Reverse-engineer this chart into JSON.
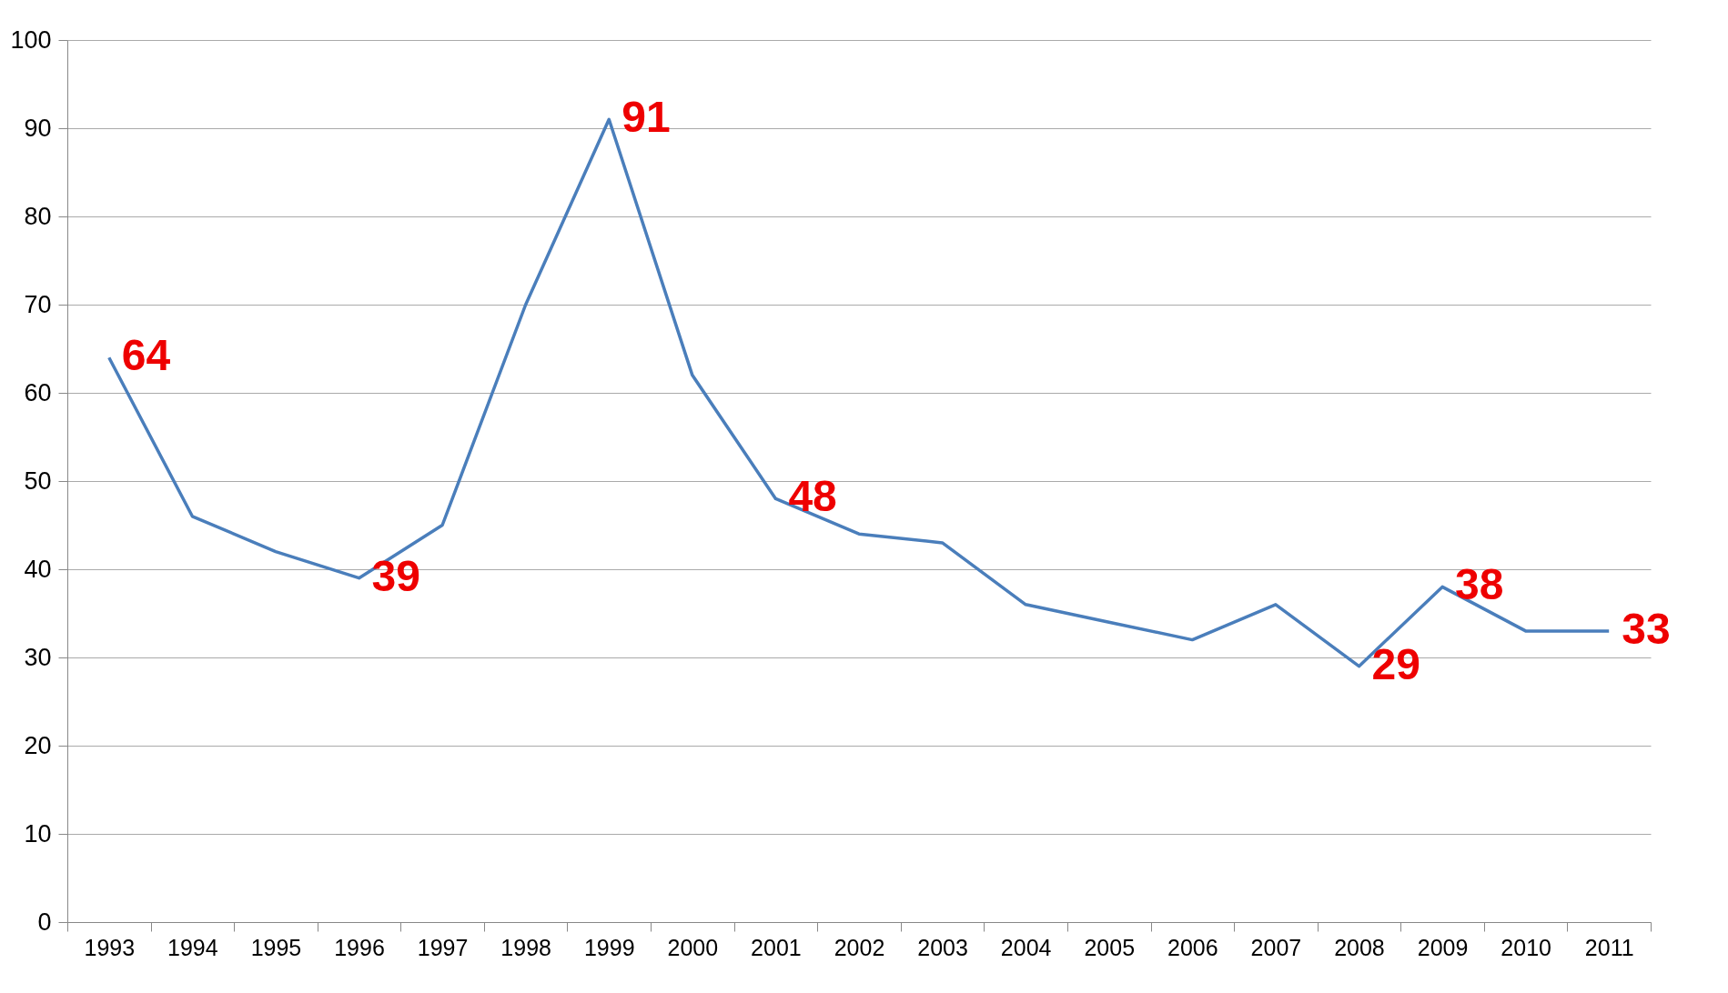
{
  "chart_data": {
    "type": "line",
    "categories": [
      "1993",
      "1994",
      "1995",
      "1996",
      "1997",
      "1998",
      "1999",
      "2000",
      "2001",
      "2002",
      "2003",
      "2004",
      "2005",
      "2006",
      "2007",
      "2008",
      "2009",
      "2010",
      "2011"
    ],
    "series": [
      {
        "color": "#4a7ebb",
        "values": [
          64,
          46,
          42,
          39,
          45,
          70,
          91,
          62,
          48,
          44,
          43,
          36,
          34,
          32,
          36,
          29,
          38,
          33,
          33
        ],
        "value_labels": [
          "64",
          null,
          null,
          "39",
          null,
          null,
          "91",
          null,
          "48",
          null,
          null,
          null,
          null,
          null,
          null,
          "29",
          "38",
          null,
          "33"
        ]
      }
    ],
    "ylim": [
      0,
      100
    ],
    "yticks": [
      0,
      10,
      20,
      30,
      40,
      50,
      60,
      70,
      80,
      90,
      100
    ],
    "grid": "y",
    "legend": false
  }
}
